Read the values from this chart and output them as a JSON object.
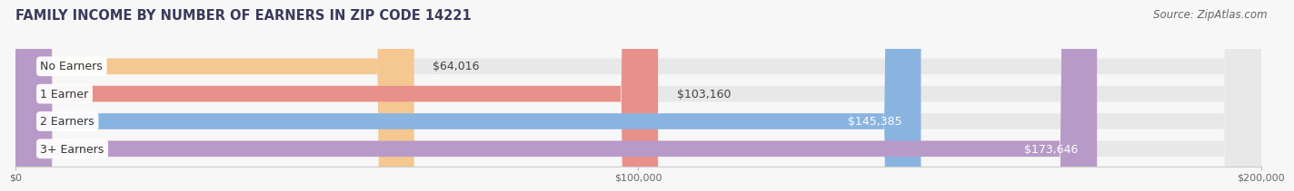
{
  "title": "FAMILY INCOME BY NUMBER OF EARNERS IN ZIP CODE 14221",
  "source": "Source: ZipAtlas.com",
  "categories": [
    "No Earners",
    "1 Earner",
    "2 Earners",
    "3+ Earners"
  ],
  "values": [
    64016,
    103160,
    145385,
    173646
  ],
  "value_labels": [
    "$64,016",
    "$103,160",
    "$145,385",
    "$173,646"
  ],
  "bar_colors": [
    "#f5c891",
    "#e8908a",
    "#8ab4e0",
    "#b89ac8"
  ],
  "bar_bg_color": "#e8e8e8",
  "value_label_inside": [
    false,
    false,
    true,
    true
  ],
  "value_label_color_outside": "#444444",
  "value_label_color_inside": "#ffffff",
  "xlim": [
    0,
    200000
  ],
  "xticks": [
    0,
    100000,
    200000
  ],
  "xtick_labels": [
    "$0",
    "$100,000",
    "$200,000"
  ],
  "title_color": "#3a3a5c",
  "title_fontsize": 10.5,
  "source_fontsize": 8.5,
  "cat_label_fontsize": 9,
  "val_label_fontsize": 9,
  "bar_height": 0.58,
  "background_color": "#f7f7f7"
}
